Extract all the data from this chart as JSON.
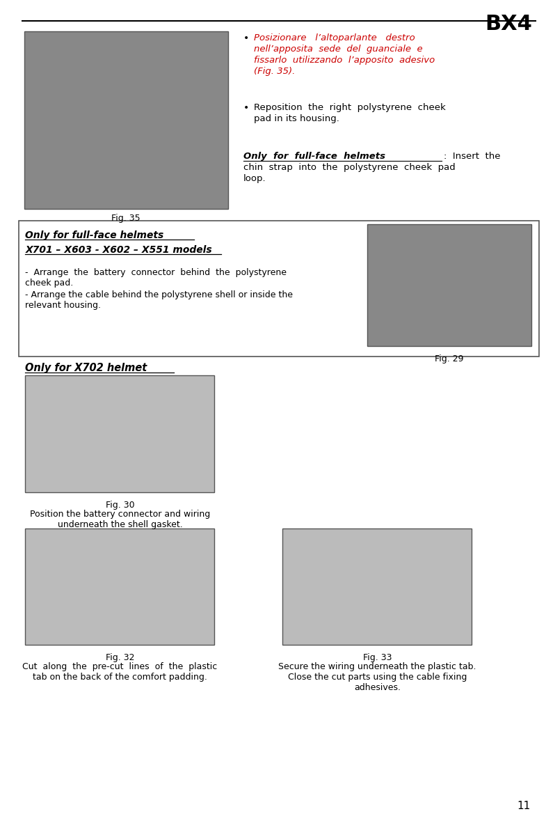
{
  "page_width": 7.85,
  "page_height": 11.69,
  "bg_color": "#ffffff",
  "bx4_text": "BX4",
  "page_number": "11",
  "red_color": "#cc0000",
  "black_color": "#000000",
  "section1": {
    "fig35_caption": "Fig. 35",
    "bullet1_line1": "Posizionare   l’altoparlante   destro",
    "bullet1_line2": "nell’apposita  sede  del  guanciale  e",
    "bullet1_line3": "fissarlo  utilizzando  l’apposito  adesivo",
    "bullet1_line4": "(Fig. 35).",
    "bullet2_line1": "Reposition  the  right  polystyrene  cheek",
    "bullet2_line2": "pad in its housing.",
    "only_fullface_bold": "Only  for  full-face  helmets",
    "only_fullface_rest": ":  Insert  the",
    "only_fullface_line2": "chin  strap  into  the  polystyrene  cheek  pad",
    "only_fullface_line3": "loop."
  },
  "section2": {
    "title1": "Only for full-face helmets",
    "title2": "X701 – X603 - X602 – X551 models",
    "line1": "-  Arrange  the  battery  connector  behind  the  polystyrene",
    "line2": "cheek pad.",
    "line3": "- Arrange the cable behind the polystyrene shell or inside the",
    "line4": "relevant housing.",
    "fig29_caption": "Fig. 29"
  },
  "section3": {
    "title": "Only for X702 helmet",
    "fig30_caption": "Fig. 30",
    "fig30_text1": "Position the battery connector and wiring",
    "fig30_text2": "underneath the shell gasket.",
    "fig32_caption": "Fig. 32",
    "fig32_text1": "Cut  along  the  pre-cut  lines  of  the  plastic",
    "fig32_text2": "tab on the back of the comfort padding.",
    "fig33_caption": "Fig. 33",
    "fig33_text1": "Secure the wiring underneath the plastic tab.",
    "fig33_text2": "Close the cut parts using the cable fixing",
    "fig33_text3": "adhesives."
  }
}
